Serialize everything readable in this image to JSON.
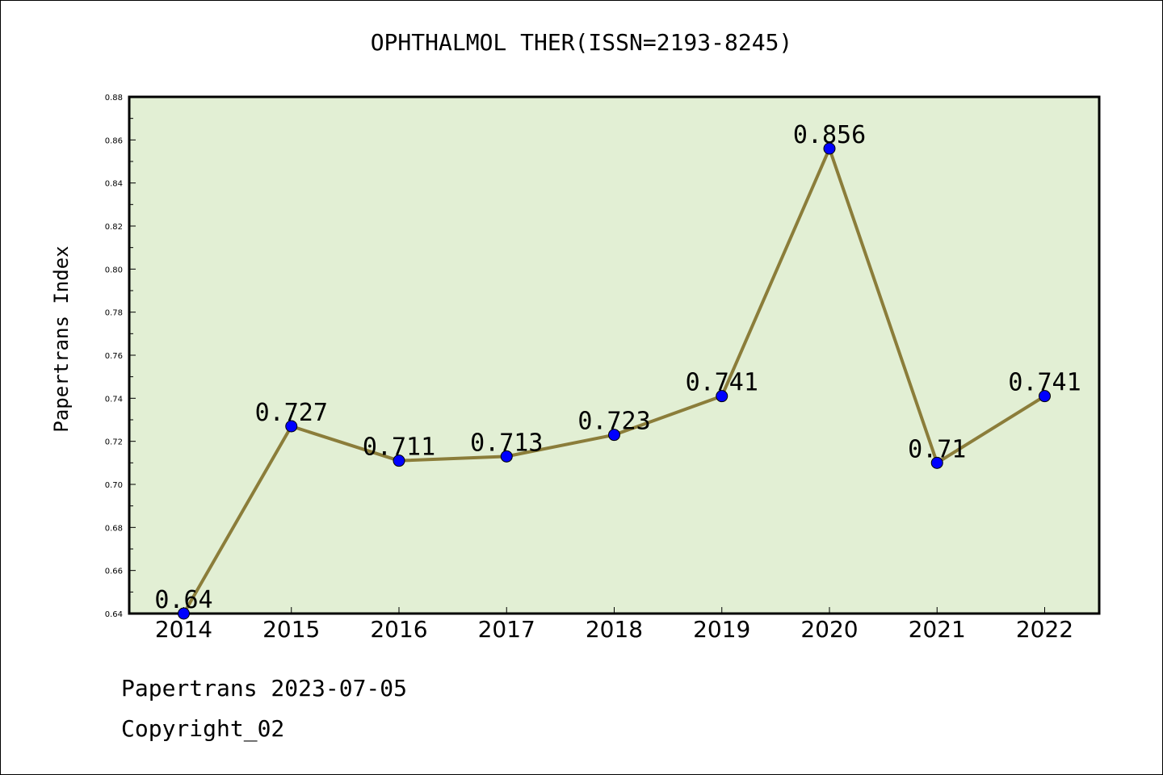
{
  "chart_data": {
    "type": "line",
    "title": "OPHTHALMOL THER(ISSN=2193-8245)",
    "xlabel": "",
    "ylabel": "Papertrans Index",
    "categories": [
      "2014",
      "2015",
      "2016",
      "2017",
      "2018",
      "2019",
      "2020",
      "2021",
      "2022"
    ],
    "values": [
      0.64,
      0.727,
      0.711,
      0.713,
      0.723,
      0.741,
      0.856,
      0.71,
      0.741
    ],
    "data_labels": [
      "0.64",
      "0.727",
      "0.711",
      "0.713",
      "0.723",
      "0.741",
      "0.856",
      "0.71",
      "0.741"
    ],
    "ylim": [
      0.64,
      0.88
    ],
    "yticks": [
      "0.64",
      "0.66",
      "0.68",
      "0.70",
      "0.72",
      "0.74",
      "0.76",
      "0.78",
      "0.80",
      "0.82",
      "0.84",
      "0.86",
      "0.88"
    ],
    "grid": false,
    "colors": {
      "plot_background": "#e2efd4",
      "line": "#8b7d3a",
      "marker": "#0000ff"
    }
  },
  "footer": {
    "date_line": "Papertrans 2023-07-05",
    "copyright": "Copyright_02"
  }
}
